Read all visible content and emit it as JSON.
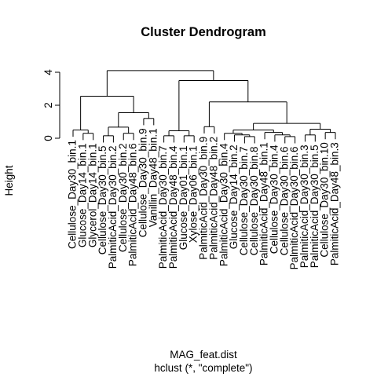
{
  "chart_data": {
    "type": "dendrogram",
    "title": "Cluster Dendrogram",
    "ylabel": "Height",
    "xlabel": "MAG_feat.dist",
    "subtitle": "hclust (*, \"complete\")",
    "ylim": [
      0,
      4.1
    ],
    "yticks": [
      0,
      2,
      4
    ],
    "color": "#000000",
    "tree": {
      "height": 4.1,
      "children": [
        {
          "height": 2.55,
          "children": [
            {
              "height": 0.5,
              "children": [
                {
                  "label": "Cellulose_Day30_bin.1"
                },
                {
                  "height": 0.3,
                  "children": [
                    {
                      "label": "Glucose_Day14_bin.1"
                    },
                    {
                      "label": "Glycerol_Day14_bin.1"
                    }
                  ]
                }
              ]
            },
            {
              "height": 1.55,
              "children": [
                {
                  "height": 0.67,
                  "children": [
                    {
                      "height": 0.15,
                      "children": [
                        {
                          "label": "Cellulose_Day30_bin.5"
                        },
                        {
                          "label": "PalmiticAcid_Day30_bin.2"
                        }
                      ]
                    },
                    {
                      "height": 0.3,
                      "children": [
                        {
                          "label": "Cellulose_Day30_bin.2"
                        },
                        {
                          "label": "PalmiticAcid_Day48_bin.6"
                        }
                      ]
                    }
                  ]
                },
                {
                  "height": 1.2,
                  "children": [
                    {
                      "label": "Cellulose_Day30_bin.9"
                    },
                    {
                      "label": "Vanillin_Day48_bin.1"
                    }
                  ]
                }
              ]
            }
          ]
        },
        {
          "height": 3.5,
          "children": [
            {
              "height": 0.45,
              "children": [
                {
                  "height": 0.15,
                  "children": [
                    {
                      "label": "PalmiticAcid_Day30_bin.7"
                    },
                    {
                      "label": "PalmiticAcid_Day48_bin.4"
                    }
                  ]
                },
                {
                  "height": 0.15,
                  "children": [
                    {
                      "label": "Glucose_Day01_bin.1"
                    },
                    {
                      "label": "Xylose_Day06_bin.1"
                    }
                  ]
                }
              ]
            },
            {
              "height": 2.2,
              "children": [
                {
                  "height": 0.7,
                  "children": [
                    {
                      "label": "PalmiticAcid_Day30_bin.9"
                    },
                    {
                      "label": "PalmiticAcid_Day48_bin.2"
                    }
                  ]
                },
                {
                  "height": 0.9,
                  "children": [
                    {
                      "height": 0.5,
                      "children": [
                        {
                          "height": 0.3,
                          "children": [
                            {
                              "label": "PalmiticAcid_Day30_bin.4"
                            },
                            {
                              "height": 0.2,
                              "children": [
                                {
                                  "label": "Glucose_Day14_bin.2"
                                },
                                {
                                  "height": 0.1,
                                  "children": [
                                    {
                                      "label": "Cellulose_Day30_bin.7"
                                    },
                                    {
                                      "label": "Cellulose_Day30_bin.8"
                                    }
                                  ]
                                }
                              ]
                            }
                          ]
                        },
                        {
                          "height": 0.35,
                          "children": [
                            {
                              "label": "PalmiticAcid_Day48_bin.1"
                            },
                            {
                              "height": 0.2,
                              "children": [
                                {
                                  "label": "Cellulose_Day30_bin.4"
                                },
                                {
                                  "height": 0.1,
                                  "children": [
                                    {
                                      "label": "Cellulose_Day30_bin.6"
                                    },
                                    {
                                      "label": "PalmiticAcid_Day30_bin.6"
                                    }
                                  ]
                                }
                              ]
                            }
                          ]
                        }
                      ]
                    },
                    {
                      "height": 0.55,
                      "children": [
                        {
                          "height": 0.2,
                          "children": [
                            {
                              "label": "PalmiticAcid_Day30_bin.3"
                            },
                            {
                              "label": "PalmiticAcid_Day30_bin.5"
                            }
                          ]
                        },
                        {
                          "height": 0.35,
                          "children": [
                            {
                              "label": "Cellulose_Day30_bin.10"
                            },
                            {
                              "label": "PalmiticAcid_Day48_bin.3"
                            }
                          ]
                        }
                      ]
                    }
                  ]
                }
              ]
            }
          ]
        }
      ]
    }
  }
}
